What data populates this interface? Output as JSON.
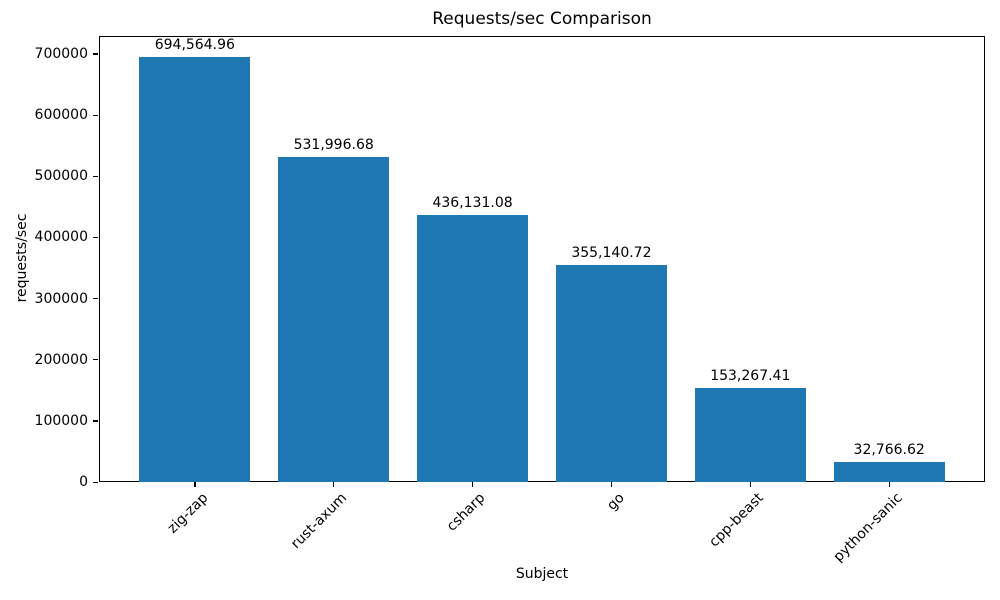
{
  "chart_data": {
    "type": "bar",
    "title": "Requests/sec Comparison",
    "xlabel": "Subject",
    "ylabel": "requests/sec",
    "categories": [
      "zig-zap",
      "rust-axum",
      "csharp",
      "go",
      "cpp-beast",
      "python-sanic"
    ],
    "values": [
      694564.96,
      531996.68,
      436131.08,
      355140.72,
      153267.41,
      32766.62
    ],
    "value_labels": [
      "694,564.96",
      "531,996.68",
      "436,131.08",
      "355,140.72",
      "153,267.41",
      "32,766.62"
    ],
    "yticks": [
      0,
      100000,
      200000,
      300000,
      400000,
      500000,
      600000,
      700000
    ],
    "ylim": [
      0,
      729293
    ],
    "xlim": [
      -0.69,
      5.69
    ],
    "bar_width": 0.8,
    "bar_color": "#1f77b4",
    "axis_color": "#000000",
    "background_color": "#ffffff",
    "grid": false,
    "legend": null
  }
}
